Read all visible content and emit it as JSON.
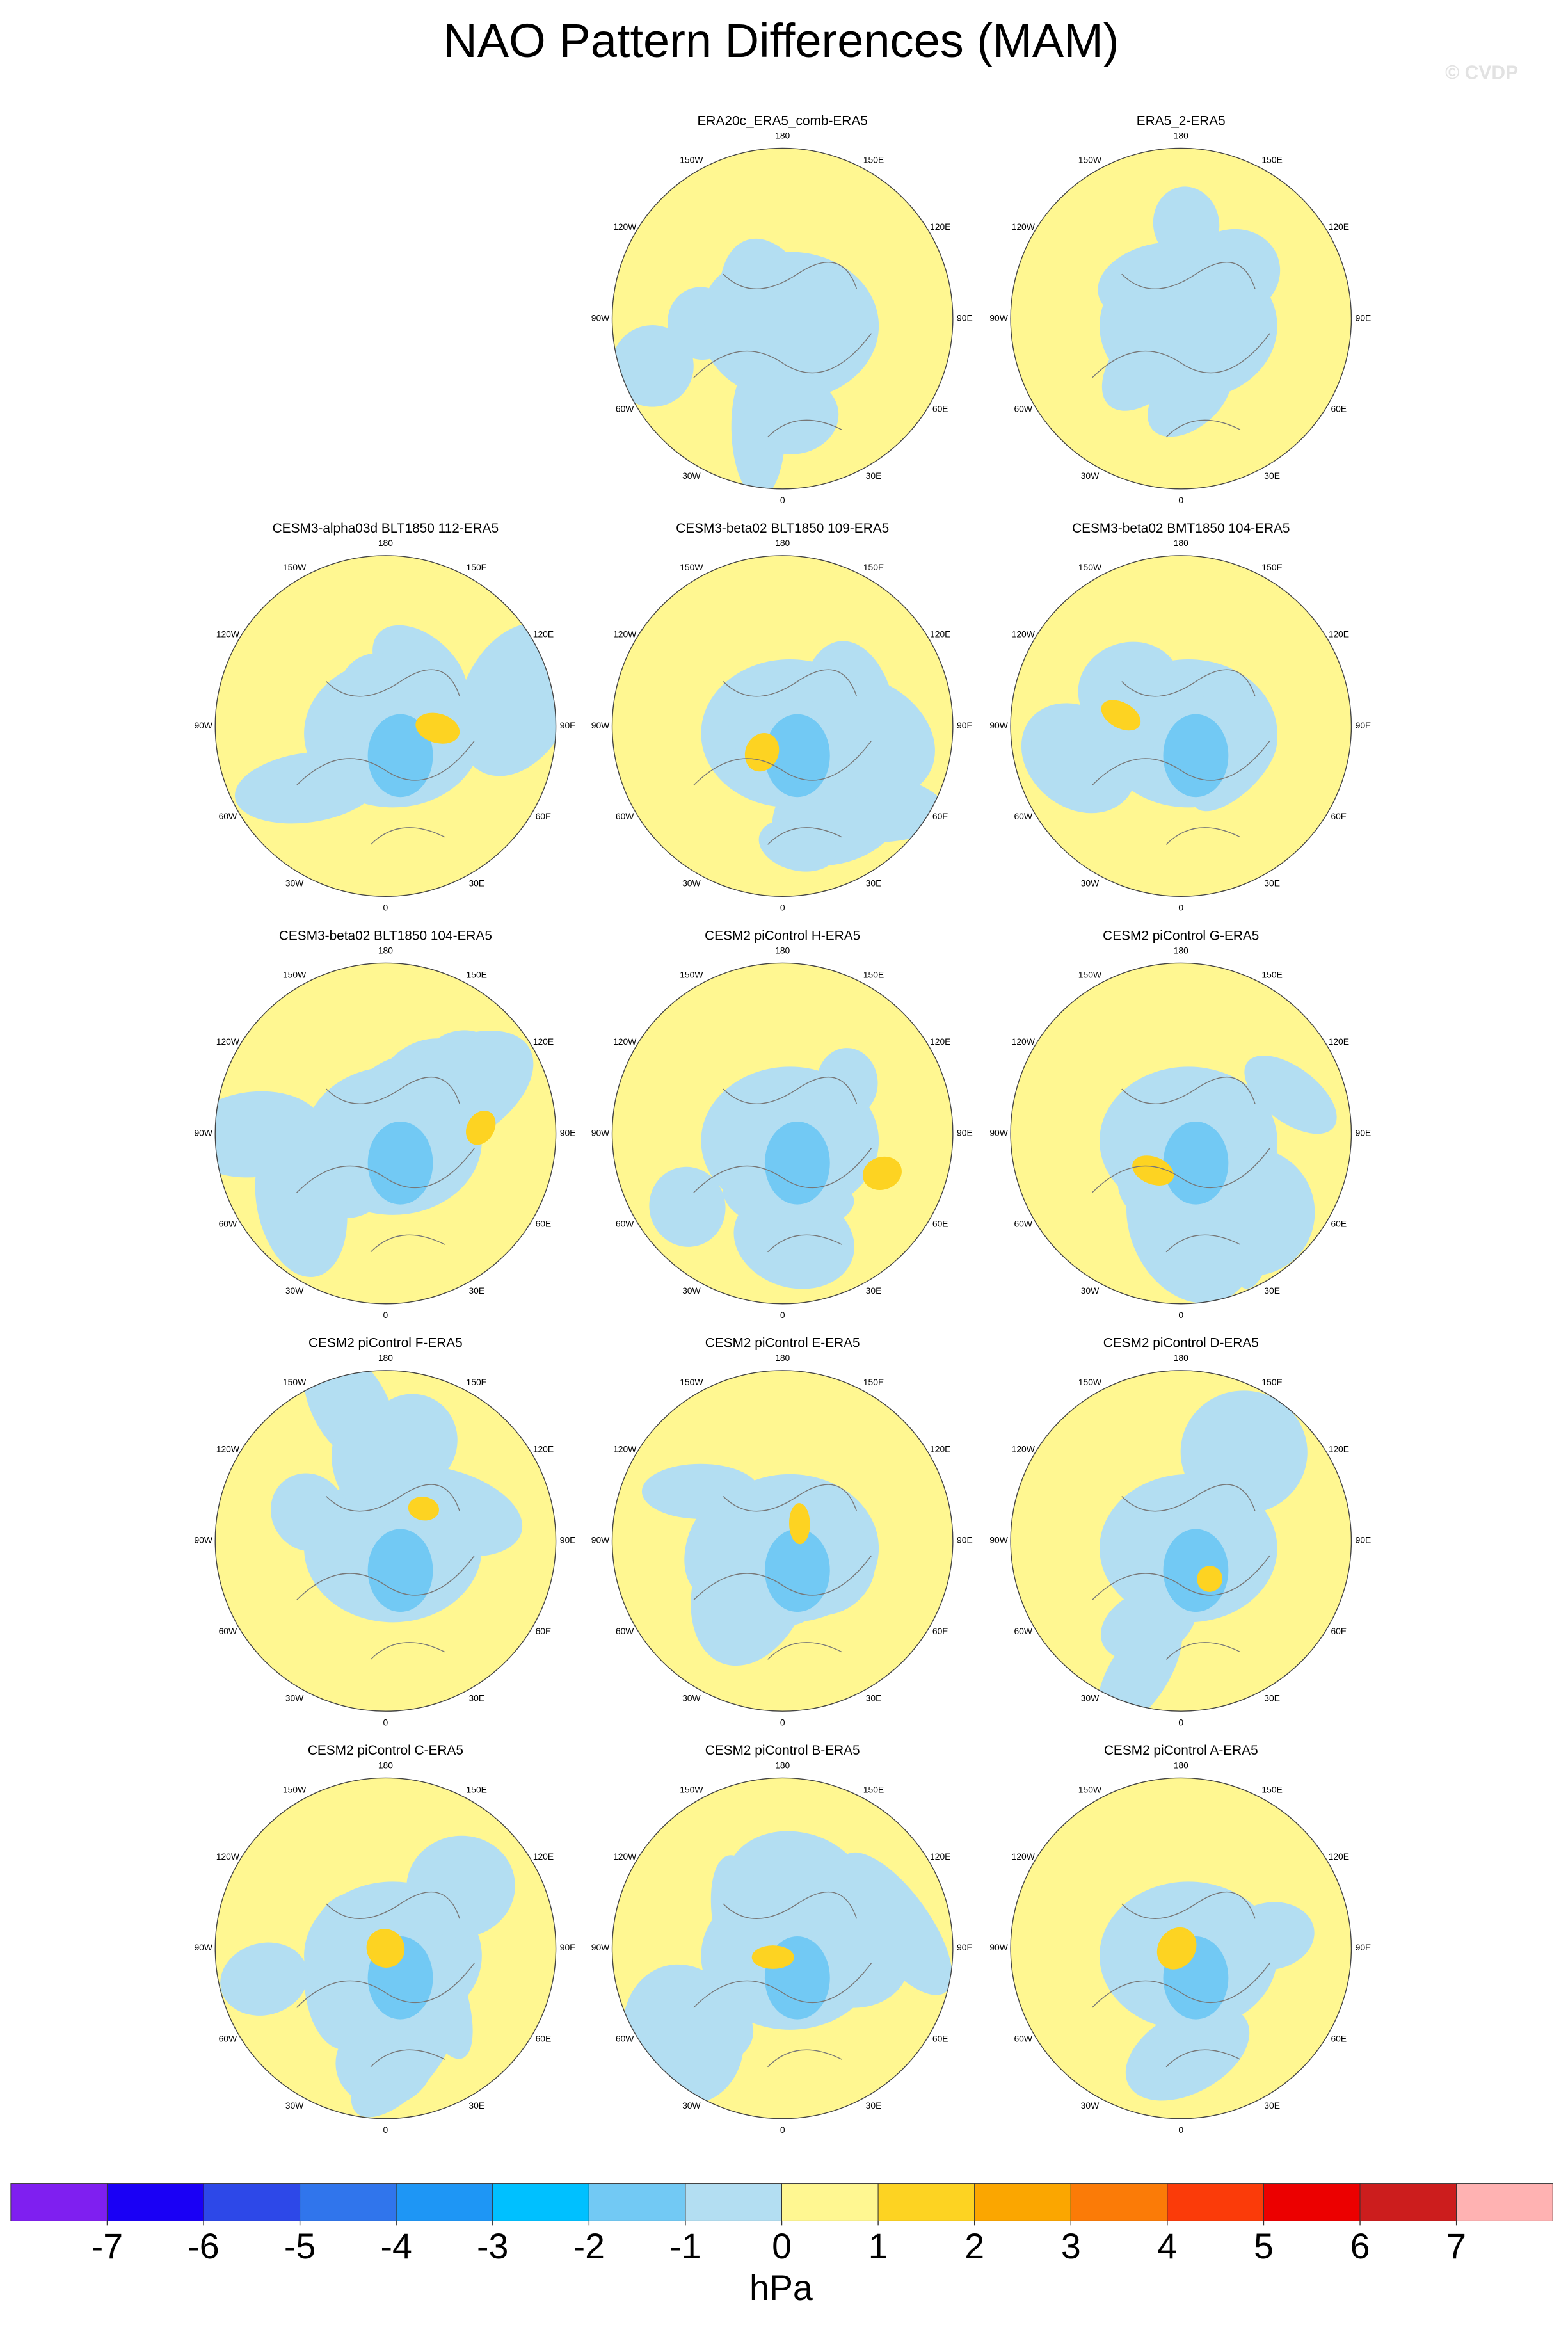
{
  "title": "NAO Pattern Differences (MAM)",
  "watermark": "© CVDP",
  "lon_labels": [
    "0",
    "30E",
    "60E",
    "90E",
    "120E",
    "150E",
    "180",
    "150W",
    "120W",
    "90W",
    "60W",
    "30W"
  ],
  "panels": [
    {
      "title": "ERA20c_ERA5_comb-ERA5"
    },
    {
      "title": "ERA5_2-ERA5"
    },
    {
      "title": "CESM3-alpha03d BLT1850 112-ERA5"
    },
    {
      "title": "CESM3-beta02 BLT1850 109-ERA5"
    },
    {
      "title": "CESM3-beta02 BMT1850 104-ERA5"
    },
    {
      "title": "CESM3-beta02 BLT1850 104-ERA5"
    },
    {
      "title": "CESM2 piControl H-ERA5"
    },
    {
      "title": "CESM2 piControl G-ERA5"
    },
    {
      "title": "CESM2 piControl F-ERA5"
    },
    {
      "title": "CESM2 piControl E-ERA5"
    },
    {
      "title": "CESM2 piControl D-ERA5"
    },
    {
      "title": "CESM2 piControl C-ERA5"
    },
    {
      "title": "CESM2 piControl B-ERA5"
    },
    {
      "title": "CESM2 piControl A-ERA5"
    }
  ],
  "colorbar": {
    "colors": [
      "#7f1ff0",
      "#1a00f5",
      "#2d48e8",
      "#3075ec",
      "#1e96f5",
      "#00c0ff",
      "#72c9f4",
      "#b3def2",
      "#fff791",
      "#fdd322",
      "#fba600",
      "#fb7b07",
      "#fb3b09",
      "#ec0000",
      "#cc1d1d",
      "#ffb2b2"
    ],
    "ticks": [
      -7,
      -6,
      -5,
      -4,
      -3,
      -2,
      -1,
      0,
      1,
      2,
      3,
      4,
      5,
      6,
      7
    ],
    "label": "hPa"
  }
}
